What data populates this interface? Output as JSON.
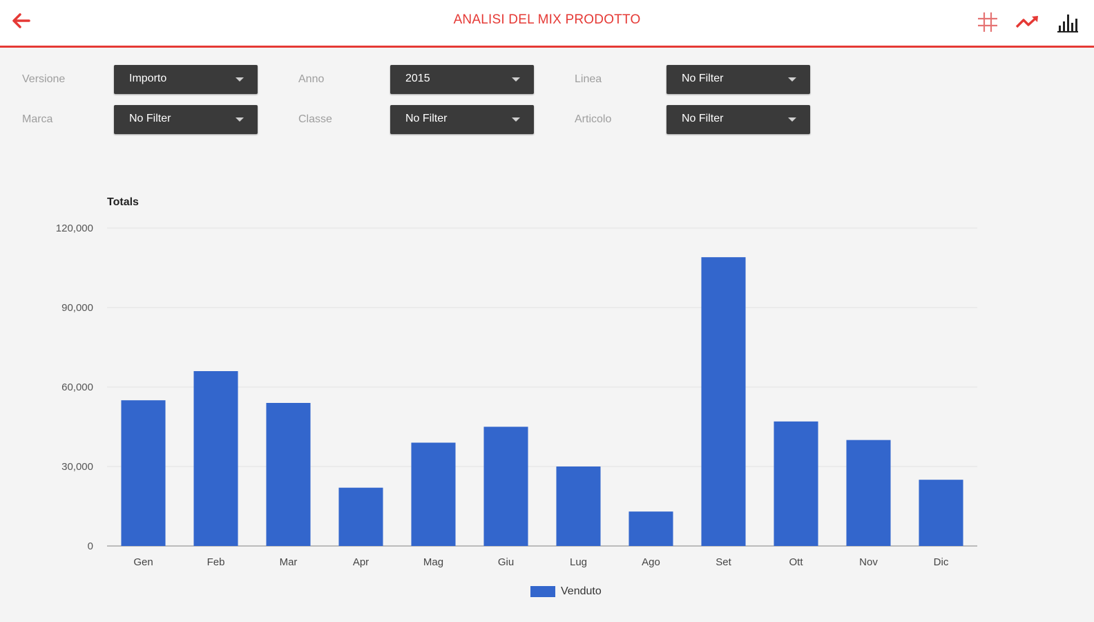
{
  "header": {
    "title": "ANALISI DEL MIX PRODOTTO",
    "back_icon": "arrow-left-icon",
    "actions": [
      {
        "icon": "grid-icon"
      },
      {
        "icon": "trending-up-icon"
      },
      {
        "icon": "bar-chart-icon"
      }
    ],
    "accent_color": "#e53935"
  },
  "filters": {
    "row1": [
      {
        "label": "Versione",
        "value": "Importo"
      },
      {
        "label": "Anno",
        "value": "2015"
      },
      {
        "label": "Linea",
        "value": "No Filter"
      }
    ],
    "row2": [
      {
        "label": "Marca",
        "value": "No Filter"
      },
      {
        "label": "Classe",
        "value": "No Filter"
      },
      {
        "label": "Articolo",
        "value": "No Filter"
      }
    ]
  },
  "chart_data": {
    "type": "bar",
    "title": "Totals",
    "categories": [
      "Gen",
      "Feb",
      "Mar",
      "Apr",
      "Mag",
      "Giu",
      "Lug",
      "Ago",
      "Set",
      "Ott",
      "Nov",
      "Dic"
    ],
    "series": [
      {
        "name": "Venduto",
        "color": "#3366cc",
        "values": [
          55000,
          66000,
          54000,
          22000,
          39000,
          45000,
          30000,
          13000,
          109000,
          47000,
          40000,
          25000
        ]
      }
    ],
    "yticks": [
      "0",
      "30,000",
      "60,000",
      "90,000",
      "120,000"
    ],
    "ylim": [
      0,
      120000
    ],
    "grid": true,
    "legend_position": "bottom"
  }
}
